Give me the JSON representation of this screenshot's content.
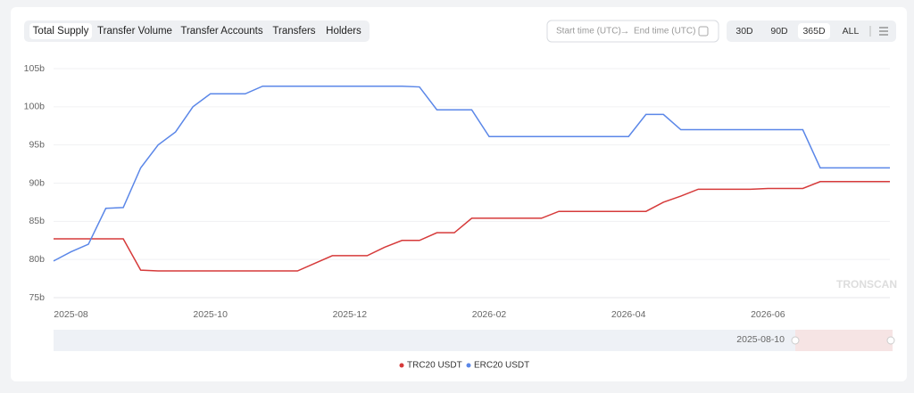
{
  "controls": {
    "tabs": [
      "Total Supply",
      "Transfer Volume",
      "Transfer Accounts",
      "Transfers",
      "Holders"
    ],
    "start_placeholder": "Start time (UTC)",
    "end_placeholder": "End time (UTC)",
    "ranges": [
      "30D",
      "90D",
      "365D",
      "ALL"
    ],
    "watermark": "TRONSCAN",
    "slider_label": "2025-08-10"
  },
  "chart_data": {
    "type": "line",
    "categories": [
      null,
      "2025-08",
      null,
      null,
      null,
      null,
      null,
      null,
      null,
      "2025-10",
      null,
      null,
      null,
      null,
      null,
      null,
      null,
      "2025-12",
      null,
      null,
      null,
      null,
      null,
      null,
      null,
      "2026-02",
      null,
      null,
      null,
      null,
      null,
      null,
      null,
      "2026-04",
      null,
      null,
      null,
      null,
      null,
      null,
      null,
      "2026-06",
      null,
      null,
      null,
      null,
      null,
      null,
      null
    ],
    "series": [
      {
        "name": "TRC20 USDT",
        "color": "#d63a3a",
        "values": [
          82.7,
          82.7,
          82.7,
          82.7,
          82.7,
          78.6,
          78.5,
          78.5,
          78.5,
          78.5,
          78.5,
          78.5,
          78.5,
          78.5,
          78.5,
          79.5,
          80.5,
          80.5,
          80.5,
          81.6,
          82.5,
          82.5,
          83.5,
          83.5,
          85.4,
          85.4,
          85.4,
          85.4,
          85.4,
          86.3,
          86.3,
          86.3,
          86.3,
          86.3,
          86.3,
          87.5,
          88.3,
          89.2,
          89.2,
          89.2,
          89.2,
          89.3,
          89.3,
          89.3,
          90.2,
          90.2,
          90.2,
          90.2,
          90.2
        ]
      },
      {
        "name": "ERC20 USDT",
        "color": "#5b87e8",
        "values": [
          79.8,
          81,
          82,
          86.7,
          86.8,
          92,
          95,
          96.7,
          100,
          101.7,
          101.7,
          101.7,
          102.7,
          102.7,
          102.7,
          102.7,
          102.7,
          102.7,
          102.7,
          102.7,
          102.7,
          102.6,
          99.6,
          99.6,
          99.6,
          96.1,
          96.1,
          96.1,
          96.1,
          96.1,
          96.1,
          96.1,
          96.1,
          96.1,
          99,
          99,
          97,
          97,
          97,
          97,
          97,
          97,
          97,
          97,
          92,
          92,
          92,
          92,
          92
        ]
      }
    ],
    "ylim": [
      75,
      105
    ],
    "yticks": [
      {
        "value": 75,
        "label": "75b"
      },
      {
        "value": 80,
        "label": "80b"
      },
      {
        "value": 85,
        "label": "85b"
      },
      {
        "value": 90,
        "label": "90b"
      },
      {
        "value": 95,
        "label": "95b"
      },
      {
        "value": 100,
        "label": "100b"
      },
      {
        "value": 105,
        "label": "105b"
      }
    ],
    "grid": true
  }
}
